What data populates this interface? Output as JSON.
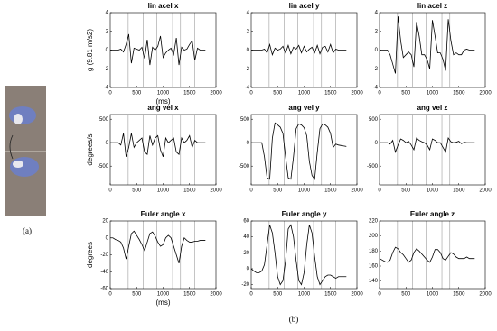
{
  "figure": {
    "label_a": "(a)",
    "label_b": "(b)"
  },
  "chart_data": [
    {
      "type": "line",
      "title": "lin acel x",
      "ylabel": "g (9.81 m/s2)",
      "xlabel": "(ms)",
      "color": "#000000",
      "xlim": [
        0,
        2000
      ],
      "xticks": [
        0,
        500,
        1000,
        1500,
        2000
      ],
      "ylim": [
        -4,
        4
      ],
      "yticks": [
        -4,
        -2,
        0,
        2,
        4
      ],
      "vlines": [
        340,
        620,
        880,
        1180,
        1330,
        1600
      ],
      "x": [
        0,
        50,
        100,
        150,
        200,
        250,
        300,
        350,
        400,
        450,
        500,
        550,
        600,
        650,
        700,
        750,
        800,
        850,
        900,
        950,
        1000,
        1050,
        1100,
        1150,
        1200,
        1250,
        1300,
        1350,
        1400,
        1450,
        1500,
        1550,
        1600,
        1650,
        1700,
        1750,
        1800
      ],
      "values": [
        0,
        0,
        0,
        0,
        0.1,
        -0.2,
        0.6,
        1.7,
        -1.4,
        0.2,
        0.1,
        0,
        0.3,
        -0.9,
        1.1,
        -1.6,
        0.3,
        0,
        0.4,
        1.5,
        -0.8,
        -0.3,
        0,
        0.2,
        -0.5,
        1.3,
        -1.6,
        0.3,
        0,
        0.1,
        0.6,
        1,
        -1.1,
        0.2,
        0,
        0,
        0
      ]
    },
    {
      "type": "line",
      "title": "lin acel y",
      "color": "#000000",
      "xlim": [
        0,
        2000
      ],
      "xticks": [
        0,
        500,
        1000,
        1500,
        2000
      ],
      "ylim": [
        -4,
        4
      ],
      "yticks": [
        -4,
        -2,
        0,
        2,
        4
      ],
      "vlines": [
        340,
        620,
        880,
        1180,
        1330,
        1600
      ],
      "x": [
        0,
        50,
        100,
        150,
        200,
        250,
        300,
        350,
        400,
        450,
        500,
        550,
        600,
        650,
        700,
        750,
        800,
        850,
        900,
        950,
        1000,
        1050,
        1100,
        1150,
        1200,
        1250,
        1300,
        1350,
        1400,
        1450,
        1500,
        1550,
        1600,
        1650,
        1700,
        1750,
        1800
      ],
      "values": [
        0,
        0,
        0,
        0,
        0,
        0.1,
        -0.3,
        0.6,
        -0.5,
        0.2,
        0,
        0.1,
        0.4,
        -0.3,
        0.5,
        -0.4,
        0.3,
        0.1,
        0.5,
        -0.3,
        0.4,
        -0.2,
        0.1,
        0.3,
        -0.3,
        0.5,
        -0.4,
        0.3,
        0.4,
        -0.2,
        0.6,
        -0.3,
        0.1,
        0,
        0,
        0,
        0
      ]
    },
    {
      "type": "line",
      "title": "lin acel z",
      "color": "#000000",
      "xlim": [
        0,
        2000
      ],
      "xticks": [
        0,
        500,
        1000,
        1500,
        2000
      ],
      "ylim": [
        -4,
        4
      ],
      "yticks": [
        -4,
        -2,
        0,
        2,
        4
      ],
      "vlines": [
        340,
        620,
        880,
        1180,
        1330,
        1600
      ],
      "x": [
        0,
        50,
        100,
        150,
        200,
        250,
        300,
        350,
        400,
        450,
        500,
        550,
        600,
        650,
        700,
        750,
        800,
        850,
        900,
        950,
        1000,
        1050,
        1100,
        1150,
        1200,
        1250,
        1300,
        1350,
        1400,
        1450,
        1500,
        1550,
        1600,
        1650,
        1700,
        1750,
        1800
      ],
      "values": [
        0,
        0,
        0,
        0,
        -0.5,
        -1.5,
        -2.5,
        3.6,
        1,
        -0.8,
        -0.5,
        -0.2,
        -0.5,
        -1.8,
        3,
        1.5,
        -0.5,
        -0.5,
        -1,
        -2,
        3.2,
        1.5,
        -0.3,
        -0.3,
        -1,
        -2.2,
        3.3,
        1,
        -0.5,
        -0.3,
        -0.5,
        -0.5,
        0,
        0.1,
        0,
        0,
        0
      ]
    },
    {
      "type": "line",
      "title": "ang vel x",
      "ylabel": "degrees/s",
      "color": "#000000",
      "xlim": [
        0,
        2000
      ],
      "xticks": [
        0,
        500,
        1000,
        1500,
        2000
      ],
      "ylim": [
        -900,
        600
      ],
      "yticks": [
        -500,
        0,
        500
      ],
      "vlines": [
        340,
        620,
        880,
        1180,
        1330,
        1600
      ],
      "x": [
        0,
        50,
        100,
        150,
        200,
        250,
        300,
        350,
        400,
        450,
        500,
        550,
        600,
        650,
        700,
        750,
        800,
        850,
        900,
        950,
        1000,
        1050,
        1100,
        1150,
        1200,
        1250,
        1300,
        1350,
        1400,
        1450,
        1500,
        1550,
        1600,
        1650,
        1700,
        1750,
        1800
      ],
      "values": [
        0,
        0,
        0,
        0,
        -50,
        200,
        -300,
        -100,
        200,
        -100,
        0,
        50,
        100,
        -200,
        -250,
        150,
        -50,
        100,
        150,
        -150,
        -300,
        100,
        0,
        50,
        100,
        -200,
        -250,
        100,
        0,
        50,
        150,
        -100,
        50,
        0,
        0,
        0,
        0
      ]
    },
    {
      "type": "line",
      "title": "ang vel y",
      "color": "#000000",
      "xlim": [
        0,
        2000
      ],
      "xticks": [
        0,
        500,
        1000,
        1500,
        2000
      ],
      "ylim": [
        -900,
        600
      ],
      "yticks": [
        -500,
        0,
        500
      ],
      "vlines": [
        340,
        620,
        880,
        1180,
        1330,
        1600
      ],
      "x": [
        0,
        50,
        100,
        150,
        200,
        250,
        300,
        350,
        400,
        450,
        500,
        550,
        600,
        650,
        700,
        750,
        800,
        850,
        900,
        950,
        1000,
        1050,
        1100,
        1150,
        1200,
        1250,
        1300,
        1350,
        1400,
        1450,
        1500,
        1550,
        1600,
        1650,
        1700,
        1750,
        1800
      ],
      "values": [
        0,
        0,
        0,
        0,
        0,
        -300,
        -750,
        -780,
        100,
        420,
        380,
        330,
        200,
        -300,
        -750,
        -780,
        -300,
        300,
        400,
        380,
        320,
        150,
        -400,
        -700,
        -780,
        -200,
        300,
        400,
        380,
        330,
        200,
        -100,
        -30,
        -50,
        -60,
        -70,
        -80
      ]
    },
    {
      "type": "line",
      "title": "ang vel z",
      "color": "#000000",
      "xlim": [
        0,
        2000
      ],
      "xticks": [
        0,
        500,
        1000,
        1500,
        2000
      ],
      "ylim": [
        -900,
        600
      ],
      "yticks": [
        -500,
        0,
        500
      ],
      "vlines": [
        340,
        620,
        880,
        1180,
        1330,
        1600
      ],
      "x": [
        0,
        50,
        100,
        150,
        200,
        250,
        300,
        350,
        400,
        450,
        500,
        550,
        600,
        650,
        700,
        750,
        800,
        850,
        900,
        950,
        1000,
        1050,
        1100,
        1150,
        1200,
        1250,
        1300,
        1350,
        1400,
        1450,
        1500,
        1550,
        1600,
        1650,
        1700,
        1750,
        1800
      ],
      "values": [
        0,
        0,
        0,
        0,
        -30,
        50,
        -200,
        -50,
        80,
        50,
        0,
        30,
        -50,
        -150,
        100,
        50,
        20,
        0,
        -50,
        -150,
        80,
        50,
        0,
        0,
        -100,
        -200,
        100,
        20,
        0,
        10,
        30,
        -20,
        10,
        0,
        0,
        0,
        0
      ]
    },
    {
      "type": "line",
      "title": "Euler angle x",
      "ylabel": "degrees",
      "xlabel": "(ms)",
      "color": "#000000",
      "xlim": [
        0,
        2000
      ],
      "xticks": [
        0,
        500,
        1000,
        1500,
        2000
      ],
      "ylim": [
        -60,
        20
      ],
      "yticks": [
        -60,
        -40,
        -20,
        0,
        20
      ],
      "vlines": [
        340,
        620,
        880,
        1180,
        1330,
        1600
      ],
      "x": [
        0,
        50,
        100,
        150,
        200,
        250,
        300,
        350,
        400,
        450,
        500,
        550,
        600,
        650,
        700,
        750,
        800,
        850,
        900,
        950,
        1000,
        1050,
        1100,
        1150,
        1200,
        1250,
        1300,
        1350,
        1400,
        1450,
        1500,
        1550,
        1600,
        1650,
        1700,
        1750,
        1800
      ],
      "values": [
        0,
        0,
        -2,
        -3,
        -5,
        -12,
        -25,
        -10,
        5,
        8,
        3,
        -2,
        -8,
        -15,
        -5,
        5,
        7,
        2,
        -5,
        -10,
        -8,
        0,
        3,
        0,
        -10,
        -20,
        -30,
        -10,
        0,
        -3,
        -5,
        -5,
        -4,
        -4,
        -3,
        -3,
        -3
      ]
    },
    {
      "type": "line",
      "title": "Euler angle y",
      "color": "#000000",
      "xlim": [
        0,
        2000
      ],
      "xticks": [
        0,
        500,
        1000,
        1500,
        2000
      ],
      "ylim": [
        -25,
        60
      ],
      "yticks": [
        -20,
        0,
        20,
        40,
        60
      ],
      "vlines": [
        340,
        620,
        880,
        1180,
        1330,
        1600
      ],
      "x": [
        0,
        50,
        100,
        150,
        200,
        250,
        300,
        350,
        400,
        450,
        500,
        550,
        600,
        650,
        700,
        750,
        800,
        850,
        900,
        950,
        1000,
        1050,
        1100,
        1150,
        1200,
        1250,
        1300,
        1350,
        1400,
        1450,
        1500,
        1550,
        1600,
        1650,
        1700,
        1750,
        1800
      ],
      "values": [
        0,
        -3,
        -5,
        -5,
        -3,
        5,
        30,
        55,
        45,
        20,
        -10,
        -20,
        -15,
        10,
        50,
        55,
        40,
        10,
        -15,
        -20,
        -5,
        30,
        55,
        45,
        15,
        -10,
        -20,
        -15,
        -10,
        -8,
        -8,
        -10,
        -12,
        -10,
        -10,
        -10,
        -10
      ]
    },
    {
      "type": "line",
      "title": "Euler angle z",
      "color": "#000000",
      "xlim": [
        0,
        2000
      ],
      "xticks": [
        0,
        500,
        1000,
        1500,
        2000
      ],
      "ylim": [
        130,
        220
      ],
      "yticks": [
        140,
        160,
        180,
        200,
        220
      ],
      "vlines": [
        340,
        620,
        880,
        1180,
        1330,
        1600
      ],
      "x": [
        0,
        50,
        100,
        150,
        200,
        250,
        300,
        350,
        400,
        450,
        500,
        550,
        600,
        650,
        700,
        750,
        800,
        850,
        900,
        950,
        1000,
        1050,
        1100,
        1150,
        1200,
        1250,
        1300,
        1350,
        1400,
        1450,
        1500,
        1550,
        1600,
        1650,
        1700,
        1750,
        1800
      ],
      "values": [
        170,
        168,
        166,
        165,
        168,
        178,
        185,
        183,
        178,
        175,
        170,
        165,
        168,
        178,
        183,
        180,
        176,
        172,
        168,
        165,
        172,
        182,
        182,
        178,
        170,
        168,
        173,
        178,
        176,
        172,
        170,
        170,
        170,
        172,
        170,
        170,
        170
      ]
    }
  ]
}
